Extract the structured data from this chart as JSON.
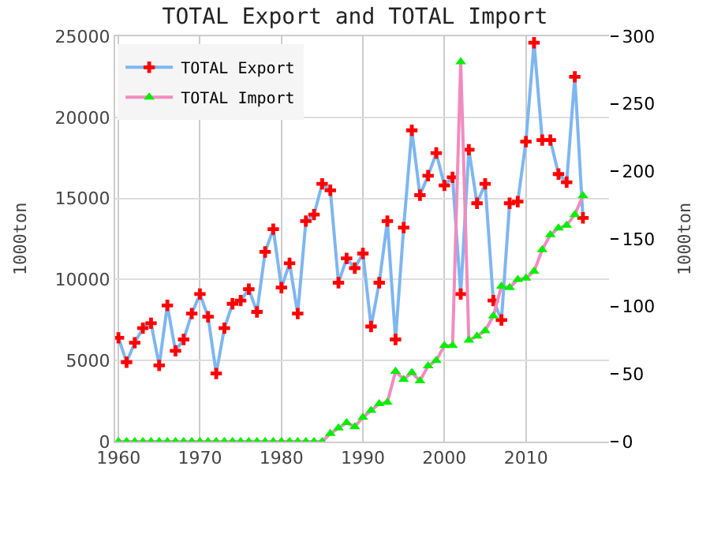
{
  "chart_data": {
    "type": "line",
    "title": "TOTAL Export and TOTAL Import",
    "ylabel": "1000ton",
    "y2label": "1000ton",
    "x": [
      1960,
      1961,
      1962,
      1963,
      1964,
      1965,
      1966,
      1967,
      1968,
      1969,
      1970,
      1971,
      1972,
      1973,
      1974,
      1975,
      1976,
      1977,
      1978,
      1979,
      1980,
      1981,
      1982,
      1983,
      1984,
      1985,
      1986,
      1987,
      1988,
      1989,
      1990,
      1991,
      1992,
      1993,
      1994,
      1995,
      1996,
      1997,
      1998,
      1999,
      2000,
      2001,
      2002,
      2003,
      2004,
      2005,
      2006,
      2007,
      2008,
      2009,
      2010,
      2011,
      2012,
      2013,
      2014,
      2015,
      2016,
      2017
    ],
    "series": [
      {
        "name": "TOTAL Export",
        "color": "#7eb6f0",
        "colors": [
          "#ff0000",
          "#ff0000",
          "#ff0000",
          "#ff0000",
          "#ff0000",
          "#ff0000",
          "#ff0000",
          "#ff0000",
          "#ff0000",
          "#ff0000",
          "#ff0000",
          "#ff0000",
          "#ff0000",
          "#ff0000",
          "#ff0000",
          "#ff0000",
          "#ff0000",
          "#ff0000",
          "#ff0000",
          "#ff0000",
          "#ff0000",
          "#ff0000",
          "#ff0000",
          "#ff0000",
          "#ff0000",
          "#ff0000",
          "#ff0000",
          "#ff0000",
          "#ff0000",
          "#ff0000",
          "#ff0000",
          "#ff0000",
          "#ff0000",
          "#ff0000",
          "#ff0000",
          "#ff0000",
          "#ff0000",
          "#ff0000",
          "#ff0000",
          "#ff0000",
          "#ff0000",
          "#ff0000",
          "#ff0000",
          "#ff0000",
          "#ff0000",
          "#ff0000",
          "#ff0000",
          "#ff0000",
          "#ff0000",
          "#ff0000",
          "#ff0000",
          "#ff0000",
          "#ff0000",
          "#ff0000",
          "#ff0000",
          "#ff0000",
          "#ff0000",
          "#ff0000"
        ],
        "marker": "cross",
        "values": [
          6400,
          4900,
          6100,
          7000,
          7300,
          4700,
          8400,
          5600,
          6300,
          7900,
          9100,
          7700,
          4200,
          7000,
          8500,
          8700,
          9400,
          8000,
          11700,
          13100,
          9500,
          11000,
          7900,
          13600,
          14000,
          15900,
          15500,
          9800,
          11300,
          10700,
          11600,
          7100,
          9800,
          13600,
          6300,
          13200,
          19200,
          15200,
          16400,
          17800,
          15800,
          16300,
          9100,
          18000,
          14700,
          15900,
          8700,
          7500,
          14700,
          14800,
          18500,
          24600,
          18600,
          18600,
          16500,
          16000,
          22500,
          13800
        ]
      },
      {
        "name": "TOTAL Import",
        "color": "#f08cc0",
        "colors": [
          "#00ee00",
          "#00ee00",
          "#00ee00",
          "#00ee00",
          "#00ee00",
          "#00ee00",
          "#00ee00",
          "#00ee00",
          "#00ee00",
          "#00ee00",
          "#00ee00",
          "#00ee00",
          "#00ee00",
          "#00ee00",
          "#00ee00",
          "#00ee00",
          "#00ee00",
          "#00ee00",
          "#00ee00",
          "#00ee00",
          "#00ee00",
          "#00ee00",
          "#00ee00",
          "#00ee00",
          "#00ee00",
          "#00ee00",
          "#00ee00",
          "#00ee00",
          "#00ee00",
          "#00ee00",
          "#00ee00",
          "#00ee00",
          "#00ee00",
          "#00ee00",
          "#00ee00",
          "#00ee00",
          "#00ee00",
          "#00ee00",
          "#00ee00",
          "#00ee00",
          "#00ee00",
          "#00ee00",
          "#00ee00",
          "#00ee00",
          "#00ee00",
          "#00ee00",
          "#00ee00",
          "#00ee00",
          "#00ee00",
          "#00ee00",
          "#00ee00",
          "#00ee00",
          "#00ee00",
          "#00ee00",
          "#00ee00",
          "#00ee00",
          "#00ee00",
          "#00ee00"
        ],
        "marker": "triangle",
        "axis": "y2",
        "values": [
          0,
          0,
          0,
          0,
          0,
          0,
          0,
          0,
          0,
          0,
          0,
          0,
          0,
          0,
          0,
          0,
          0,
          0,
          0,
          0,
          0,
          0,
          0,
          0,
          0,
          0,
          6,
          10,
          14,
          11,
          18,
          23,
          28,
          29,
          52,
          46,
          51,
          45,
          56,
          60,
          71,
          71,
          281,
          75,
          78,
          82,
          93,
          115,
          114,
          120,
          121,
          126,
          142,
          153,
          158,
          160,
          168,
          182
        ]
      }
    ],
    "xlim": [
      1959.6,
      2020.2
    ],
    "xticks": [
      1960,
      1970,
      1980,
      1990,
      2000,
      2010
    ],
    "ylim": [
      0,
      25000
    ],
    "yticks": [
      0,
      5000,
      10000,
      15000,
      20000,
      25000
    ],
    "y2lim": [
      0,
      300
    ],
    "y2ticks": [
      0,
      50,
      100,
      150,
      200,
      250,
      300
    ],
    "grid": true,
    "legend": "top left"
  }
}
